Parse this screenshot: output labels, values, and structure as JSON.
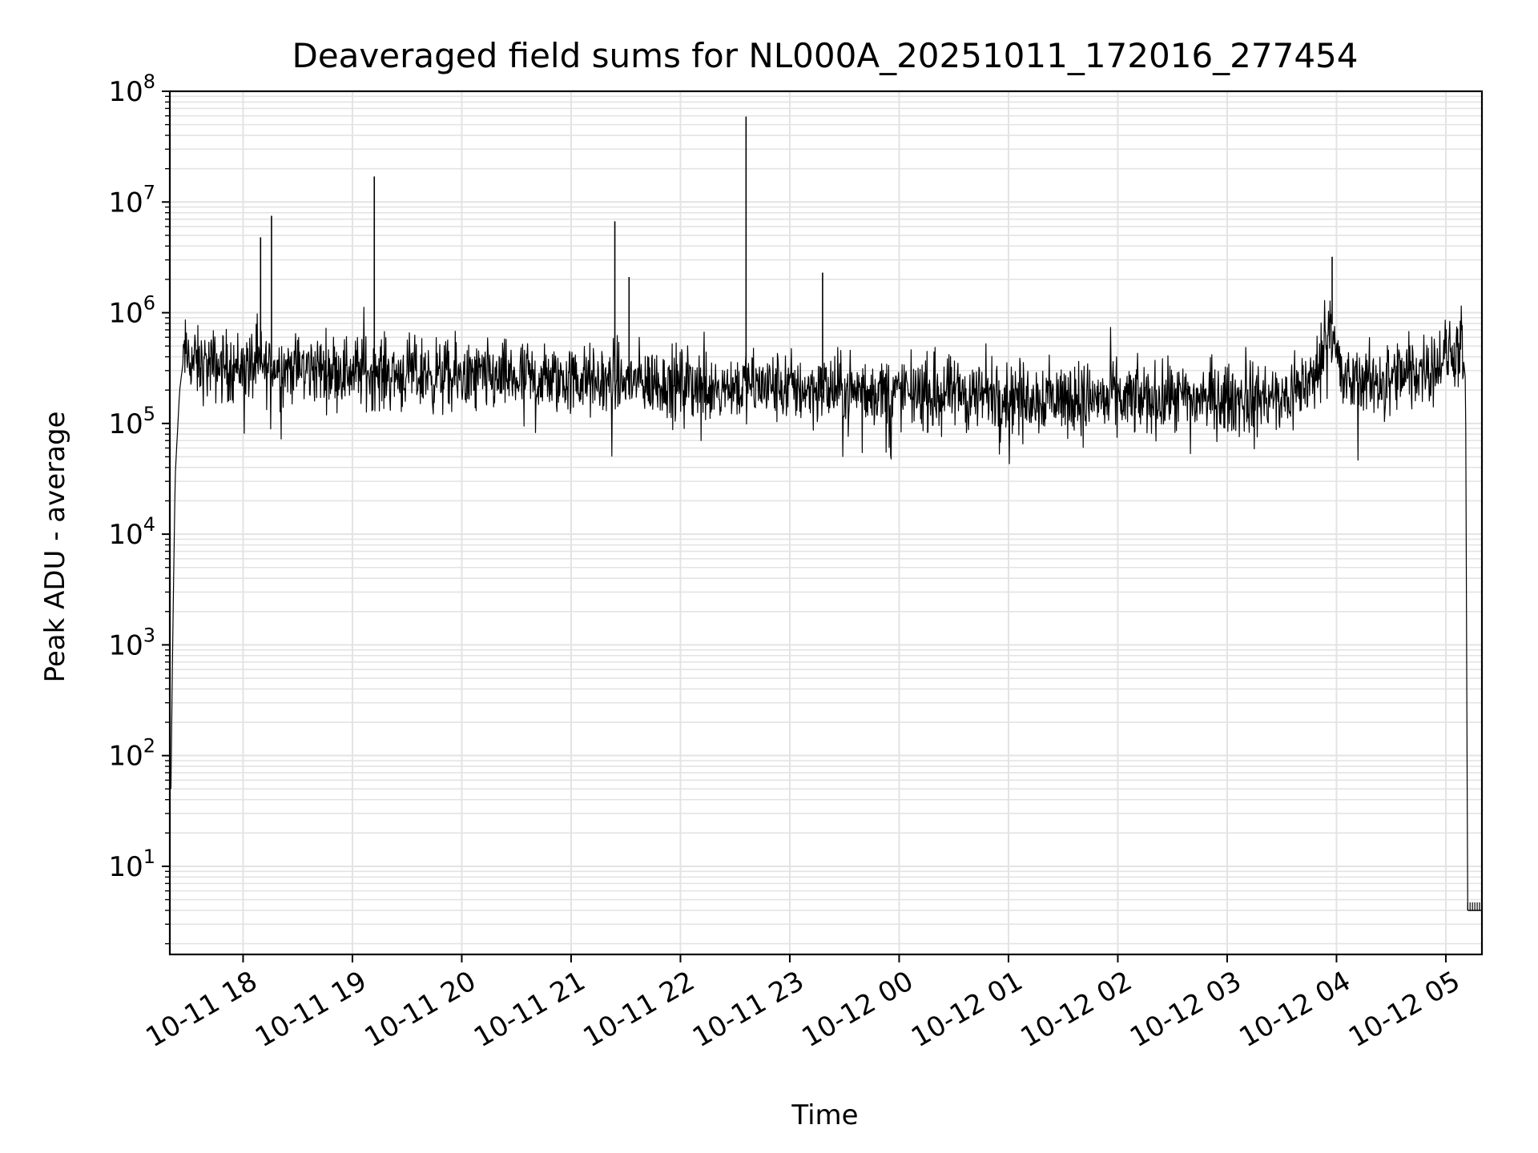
{
  "chart_data": {
    "type": "line",
    "title": "Deaveraged field sums for NL000A_20251011_172016_277454",
    "xlabel": "Time",
    "ylabel": "Peak ADU - average",
    "yscale": "log",
    "ylim": [
      1.6,
      100000000
    ],
    "xlim_hours": [
      17.33,
      29.33
    ],
    "grid": true,
    "line_color": "#000000",
    "grid_color": "#e3e3e3",
    "x_ticks": [
      {
        "hour": 18,
        "label": "10-11 18"
      },
      {
        "hour": 19,
        "label": "10-11 19"
      },
      {
        "hour": 20,
        "label": "10-11 20"
      },
      {
        "hour": 21,
        "label": "10-11 21"
      },
      {
        "hour": 22,
        "label": "10-11 22"
      },
      {
        "hour": 23,
        "label": "10-11 23"
      },
      {
        "hour": 24,
        "label": "10-12 00"
      },
      {
        "hour": 25,
        "label": "10-12 01"
      },
      {
        "hour": 26,
        "label": "10-12 02"
      },
      {
        "hour": 27,
        "label": "10-12 03"
      },
      {
        "hour": 28,
        "label": "10-12 04"
      },
      {
        "hour": 29,
        "label": "10-12 05"
      }
    ],
    "y_ticks": [
      {
        "exp": 1,
        "base": "10",
        "sup": "1"
      },
      {
        "exp": 2,
        "base": "10",
        "sup": "2"
      },
      {
        "exp": 3,
        "base": "10",
        "sup": "3"
      },
      {
        "exp": 4,
        "base": "10",
        "sup": "4"
      },
      {
        "exp": 5,
        "base": "10",
        "sup": "5"
      },
      {
        "exp": 6,
        "base": "10",
        "sup": "6"
      },
      {
        "exp": 7,
        "base": "10",
        "sup": "7"
      },
      {
        "exp": 8,
        "base": "10",
        "sup": "8"
      }
    ],
    "envelope": [
      {
        "hour": 17.34,
        "value": 50
      },
      {
        "hour": 17.36,
        "value": 2000
      },
      {
        "hour": 17.38,
        "value": 35000
      },
      {
        "hour": 17.42,
        "value": 200000
      },
      {
        "hour": 17.46,
        "value": 420000
      },
      {
        "hour": 17.6,
        "value": 330000
      },
      {
        "hour": 18.5,
        "value": 320000
      },
      {
        "hour": 20.0,
        "value": 260000
      },
      {
        "hour": 22.0,
        "value": 230000
      },
      {
        "hour": 23.0,
        "value": 210000
      },
      {
        "hour": 24.0,
        "value": 190000
      },
      {
        "hour": 26.0,
        "value": 165000
      },
      {
        "hour": 27.5,
        "value": 165000
      },
      {
        "hour": 27.8,
        "value": 250000
      },
      {
        "hour": 27.95,
        "value": 900000
      },
      {
        "hour": 28.05,
        "value": 230000
      },
      {
        "hour": 28.6,
        "value": 260000
      },
      {
        "hour": 28.9,
        "value": 350000
      },
      {
        "hour": 29.15,
        "value": 480000
      },
      {
        "hour": 29.18,
        "value": 250000
      },
      {
        "hour": 29.2,
        "value": 4
      }
    ],
    "tail": [
      {
        "hour": 29.2,
        "value": 4
      },
      {
        "hour": 29.33,
        "value": 4
      }
    ],
    "spikes": [
      {
        "hour": 18.16,
        "value": 4800000
      },
      {
        "hour": 18.26,
        "value": 7500000
      },
      {
        "hour": 19.2,
        "value": 17000000
      },
      {
        "hour": 21.4,
        "value": 6700000
      },
      {
        "hour": 21.53,
        "value": 2100000
      },
      {
        "hour": 22.6,
        "value": 59000000
      },
      {
        "hour": 23.3,
        "value": 2300000
      },
      {
        "hour": 27.96,
        "value": 3200000
      }
    ]
  }
}
